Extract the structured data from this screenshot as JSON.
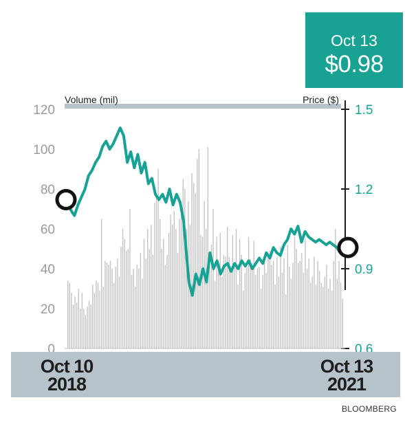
{
  "callout": {
    "date": "Oct 13",
    "price": "$0.98"
  },
  "source": "BLOOMBERG",
  "x_labels": {
    "start_line1": "Oct 10",
    "start_line2": "2018",
    "end_line1": "Oct 13",
    "end_line2": "2021"
  },
  "chart_data": {
    "type": "line",
    "left_axis": {
      "label": "Volume (mil)",
      "ticks": [
        0,
        20,
        40,
        60,
        80,
        100,
        120
      ],
      "range": [
        0,
        120
      ]
    },
    "right_axis": {
      "label": "Price ($)",
      "ticks": [
        0.6,
        0.9,
        1.2,
        1.5
      ],
      "range": [
        0.6,
        1.5
      ]
    },
    "x_range": [
      "2018-10-10",
      "2021-10-13"
    ],
    "price_series": {
      "color": "#17a293",
      "points": [
        [
          "2018-10-10",
          1.16
        ],
        [
          "2018-10-24",
          1.12
        ],
        [
          "2018-11-07",
          1.1
        ],
        [
          "2018-11-21",
          1.14
        ],
        [
          "2018-12-05",
          1.17
        ],
        [
          "2018-12-19",
          1.2
        ],
        [
          "2019-01-02",
          1.25
        ],
        [
          "2019-01-16",
          1.27
        ],
        [
          "2019-01-30",
          1.3
        ],
        [
          "2019-02-13",
          1.32
        ],
        [
          "2019-02-27",
          1.36
        ],
        [
          "2019-03-13",
          1.38
        ],
        [
          "2019-03-27",
          1.35
        ],
        [
          "2019-04-10",
          1.37
        ],
        [
          "2019-04-24",
          1.4
        ],
        [
          "2019-05-08",
          1.43
        ],
        [
          "2019-05-22",
          1.4
        ],
        [
          "2019-06-05",
          1.3
        ],
        [
          "2019-06-19",
          1.34
        ],
        [
          "2019-07-03",
          1.28
        ],
        [
          "2019-07-17",
          1.33
        ],
        [
          "2019-07-31",
          1.26
        ],
        [
          "2019-08-14",
          1.3
        ],
        [
          "2019-08-28",
          1.22
        ],
        [
          "2019-09-11",
          1.24
        ],
        [
          "2019-09-25",
          1.18
        ],
        [
          "2019-10-09",
          1.16
        ],
        [
          "2019-10-23",
          1.18
        ],
        [
          "2019-11-06",
          1.15
        ],
        [
          "2019-11-20",
          1.2
        ],
        [
          "2019-12-04",
          1.14
        ],
        [
          "2019-12-18",
          1.18
        ],
        [
          "2020-01-01",
          1.15
        ],
        [
          "2020-01-15",
          1.08
        ],
        [
          "2020-02-05",
          0.85
        ],
        [
          "2020-02-19",
          0.8
        ],
        [
          "2020-03-04",
          0.88
        ],
        [
          "2020-03-18",
          0.84
        ],
        [
          "2020-04-01",
          0.9
        ],
        [
          "2020-04-15",
          0.85
        ],
        [
          "2020-04-29",
          0.96
        ],
        [
          "2020-05-13",
          0.9
        ],
        [
          "2020-05-27",
          0.93
        ],
        [
          "2020-06-10",
          0.88
        ],
        [
          "2020-06-24",
          0.91
        ],
        [
          "2020-07-08",
          0.92
        ],
        [
          "2020-07-22",
          0.89
        ],
        [
          "2020-08-05",
          0.92
        ],
        [
          "2020-08-19",
          0.9
        ],
        [
          "2020-09-02",
          0.93
        ],
        [
          "2020-09-16",
          0.91
        ],
        [
          "2020-09-30",
          0.93
        ],
        [
          "2020-10-14",
          0.9
        ],
        [
          "2020-10-28",
          0.92
        ],
        [
          "2020-11-11",
          0.94
        ],
        [
          "2020-11-25",
          0.92
        ],
        [
          "2020-12-09",
          0.96
        ],
        [
          "2020-12-23",
          0.94
        ],
        [
          "2021-01-06",
          0.98
        ],
        [
          "2021-01-20",
          0.96
        ],
        [
          "2021-02-03",
          0.95
        ],
        [
          "2021-02-17",
          0.99
        ],
        [
          "2021-03-03",
          1.01
        ],
        [
          "2021-03-17",
          1.05
        ],
        [
          "2021-03-31",
          1.03
        ],
        [
          "2021-04-14",
          1.06
        ],
        [
          "2021-04-28",
          1.0
        ],
        [
          "2021-05-12",
          1.04
        ],
        [
          "2021-05-26",
          1.02
        ],
        [
          "2021-06-09",
          1.01
        ],
        [
          "2021-06-23",
          1.0
        ],
        [
          "2021-07-07",
          1.01
        ],
        [
          "2021-07-21",
          1.0
        ],
        [
          "2021-08-04",
          0.99
        ],
        [
          "2021-08-18",
          1.0
        ],
        [
          "2021-09-01",
          0.99
        ],
        [
          "2021-09-15",
          0.98
        ],
        [
          "2021-09-29",
          0.96
        ],
        [
          "2021-10-13",
          0.98
        ]
      ]
    },
    "volume_series": {
      "color": "#c4c4c4",
      "values_mil": [
        34,
        33,
        28,
        22,
        26,
        23,
        30,
        20,
        28,
        20,
        17,
        21,
        24,
        22,
        32,
        28,
        34,
        33,
        29,
        65,
        31,
        44,
        43,
        42,
        44,
        40,
        33,
        41,
        45,
        36,
        51,
        60,
        55,
        49,
        50,
        70,
        37,
        40,
        31,
        42,
        40,
        48,
        35,
        55,
        45,
        60,
        50,
        62,
        47,
        73,
        78,
        90,
        65,
        50,
        55,
        42,
        47,
        58,
        67,
        62,
        69,
        60,
        48,
        65,
        70,
        85,
        80,
        60,
        74,
        62,
        88,
        83,
        78,
        95,
        100,
        57,
        56,
        74,
        60,
        101,
        43,
        52,
        70,
        34,
        56,
        42,
        58,
        36,
        47,
        46,
        61,
        46,
        39,
        57,
        41,
        60,
        32,
        55,
        47,
        29,
        38,
        41,
        56,
        45,
        43,
        54,
        37,
        40,
        41,
        30,
        37,
        44,
        38,
        48,
        49,
        42,
        44,
        32,
        46,
        36,
        51,
        38,
        45,
        27,
        52,
        41,
        35,
        43,
        56,
        50,
        43,
        44,
        48,
        38,
        55,
        40,
        45,
        33,
        36,
        46,
        32,
        44,
        39,
        33,
        31,
        36,
        42,
        30,
        35,
        29,
        44,
        60,
        35,
        44,
        33,
        25
      ]
    },
    "markers": [
      {
        "date": "2018-10-10",
        "price": 1.16
      },
      {
        "date": "2021-10-13",
        "price": 0.98
      }
    ],
    "title": "",
    "grid": false
  }
}
